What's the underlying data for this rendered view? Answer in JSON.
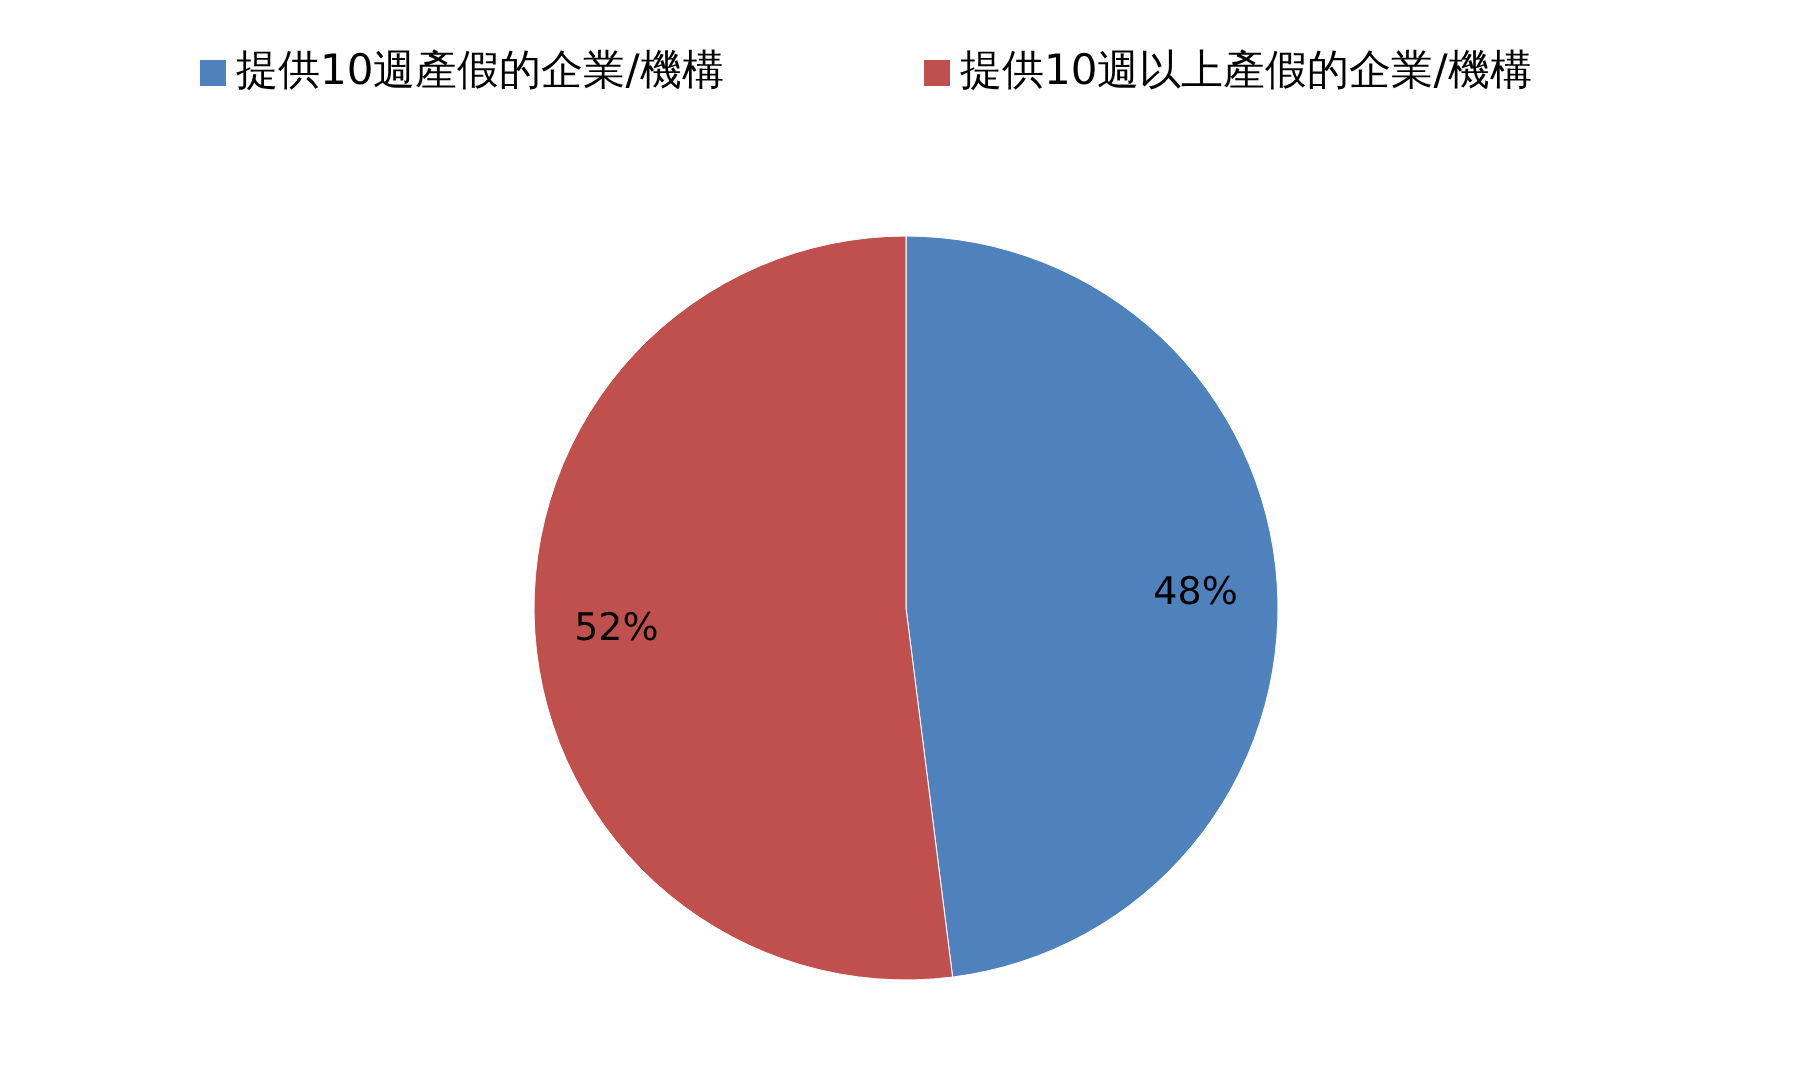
{
  "chart_data": {
    "type": "pie",
    "categories": [
      "提供10週產假的企業/機構",
      "提供10週以上產假的企業/機構"
    ],
    "values": [
      48,
      52
    ],
    "colors": [
      "#4f81bd",
      "#c0504d"
    ],
    "value_labels": [
      "48%",
      "52%"
    ],
    "legend": "top"
  }
}
